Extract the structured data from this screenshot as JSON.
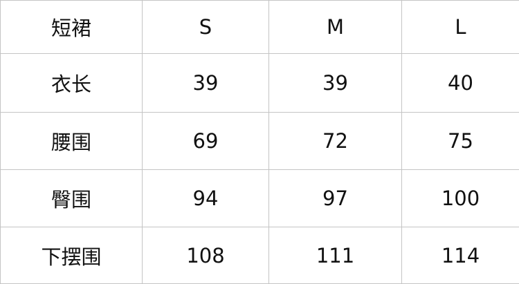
{
  "table": {
    "headers": [
      "短裙",
      "S",
      "M",
      "L"
    ],
    "rows": [
      [
        "衣长",
        "39",
        "39",
        "40"
      ],
      [
        "腰围",
        "69",
        "72",
        "75"
      ],
      [
        "臀围",
        "94",
        "97",
        "100"
      ],
      [
        "下摆围",
        "108",
        "111",
        "114"
      ]
    ]
  }
}
